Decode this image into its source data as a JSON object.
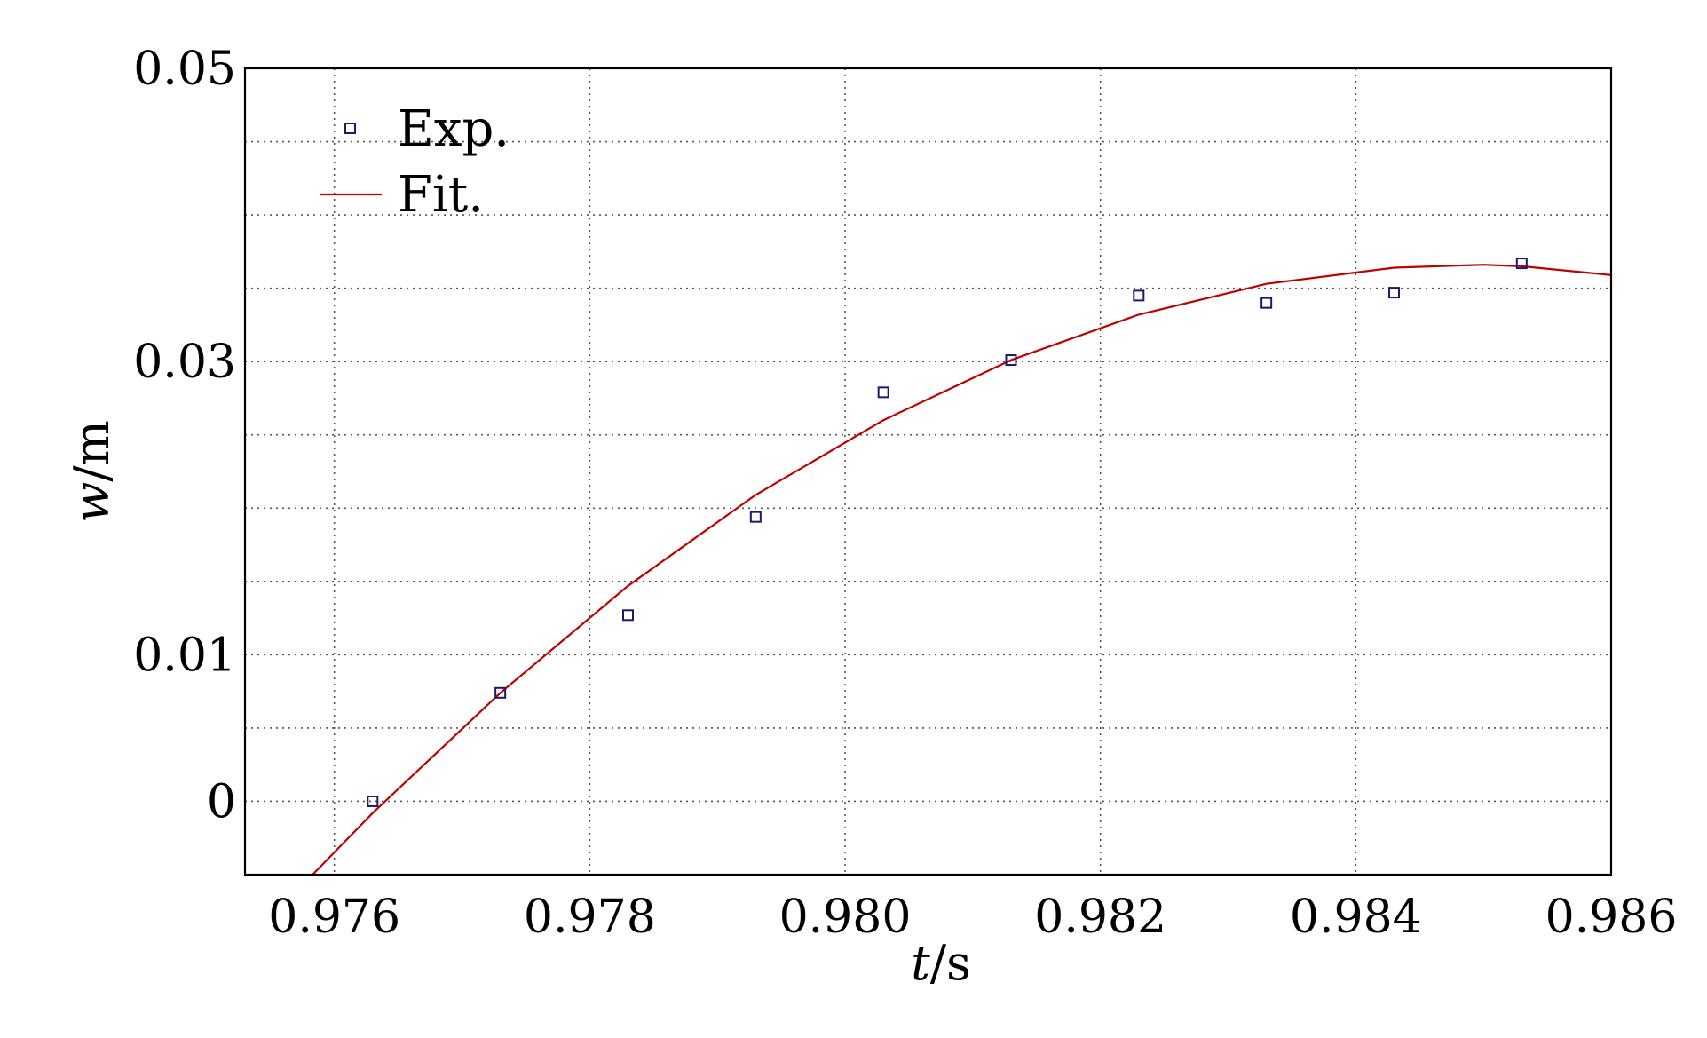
{
  "chart_data": {
    "type": "scatter",
    "xlabel_var": "t",
    "xlabel_unit": "/s",
    "ylabel_var": "w",
    "ylabel_unit": "/m",
    "xlim": [
      0.9753,
      0.986
    ],
    "ylim": [
      -0.005,
      0.05
    ],
    "xticks": [
      "0.976",
      "0.978",
      "0.980",
      "0.982",
      "0.984",
      "0.986"
    ],
    "yticks": [
      "0",
      "0.01",
      "0.03",
      "0.05"
    ],
    "ytick_values": [
      0,
      0.01,
      0.03,
      0.05
    ],
    "xtick_values": [
      0.976,
      0.978,
      0.98,
      0.982,
      0.984,
      0.986
    ],
    "xgrid": [
      0.976,
      0.978,
      0.98,
      0.982,
      0.984
    ],
    "ygrid": [
      0,
      0.005,
      0.01,
      0.015,
      0.02,
      0.025,
      0.03,
      0.035,
      0.04,
      0.045
    ],
    "grid": true,
    "legend": {
      "placement": "top-left"
    },
    "series": [
      {
        "name": "Exp.",
        "kind": "scatter",
        "marker": "square",
        "color": "#1a1a6e",
        "points": [
          {
            "x": 0.9763,
            "y": 0.0
          },
          {
            "x": 0.9773,
            "y": 0.0074
          },
          {
            "x": 0.9783,
            "y": 0.0127
          },
          {
            "x": 0.9793,
            "y": 0.0194
          },
          {
            "x": 0.9803,
            "y": 0.0279
          },
          {
            "x": 0.9813,
            "y": 0.0301
          },
          {
            "x": 0.9823,
            "y": 0.0345
          },
          {
            "x": 0.9833,
            "y": 0.034
          },
          {
            "x": 0.9843,
            "y": 0.0347
          },
          {
            "x": 0.9853,
            "y": 0.0367
          }
        ]
      },
      {
        "name": "Fit.",
        "kind": "line",
        "color": "#c00000",
        "points": [
          {
            "x": 0.97583,
            "y": -0.005
          },
          {
            "x": 0.9763,
            "y": -0.0008
          },
          {
            "x": 0.9773,
            "y": 0.0074
          },
          {
            "x": 0.9783,
            "y": 0.0147
          },
          {
            "x": 0.9793,
            "y": 0.0209
          },
          {
            "x": 0.9803,
            "y": 0.026
          },
          {
            "x": 0.9813,
            "y": 0.0301
          },
          {
            "x": 0.9823,
            "y": 0.0332
          },
          {
            "x": 0.9833,
            "y": 0.0353
          },
          {
            "x": 0.9843,
            "y": 0.0364
          },
          {
            "x": 0.985,
            "y": 0.0366
          },
          {
            "x": 0.9853,
            "y": 0.0365
          },
          {
            "x": 0.986,
            "y": 0.0359
          }
        ]
      }
    ]
  }
}
